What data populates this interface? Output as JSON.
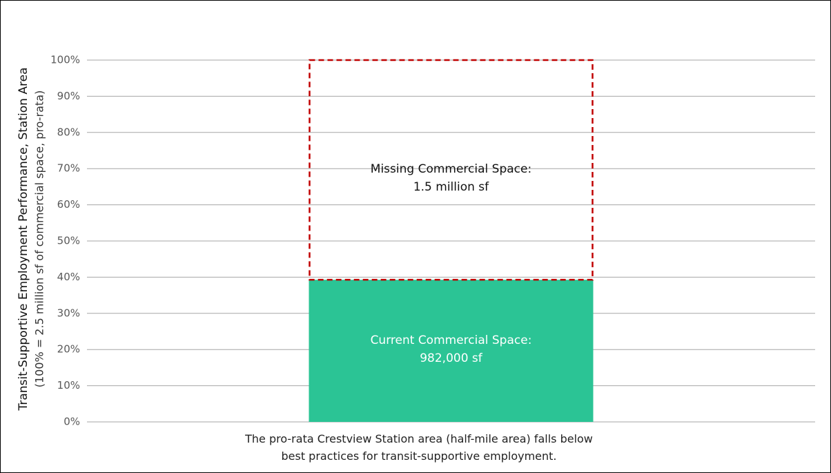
{
  "chart_data": {
    "type": "stacked_bar",
    "y_axis_title": "Transit-Supportive Employment Performance, Station Area",
    "y_axis_subtitle": "(100% = 2.5 million sf of commercial space, pro-rata)",
    "categories": [
      "The pro-rata Crestview Station area (half-mile area) falls below best practices for transit-supportive employment."
    ],
    "series": [
      {
        "name": "Current Commercial Space:",
        "color": "#2bc495",
        "style": "solid",
        "values": [
          39.28
        ],
        "value_labels": [
          "982,000 sf"
        ]
      },
      {
        "name": "Missing Commercial Space:",
        "color": "#c00000",
        "style": "dashed",
        "values": [
          60.72
        ],
        "value_labels": [
          "1.5 million sf"
        ]
      }
    ],
    "ylim": [
      0,
      100
    ],
    "yticks": [
      {
        "value": 0,
        "label": "0%"
      },
      {
        "value": 10,
        "label": "10%"
      },
      {
        "value": 20,
        "label": "20%"
      },
      {
        "value": 30,
        "label": "30%"
      },
      {
        "value": 40,
        "label": "40%"
      },
      {
        "value": 50,
        "label": "50%"
      },
      {
        "value": 60,
        "label": "60%"
      },
      {
        "value": 70,
        "label": "70%"
      },
      {
        "value": 80,
        "label": "80%"
      },
      {
        "value": 90,
        "label": "90%"
      },
      {
        "value": 100,
        "label": "100%"
      }
    ],
    "grid": true
  }
}
